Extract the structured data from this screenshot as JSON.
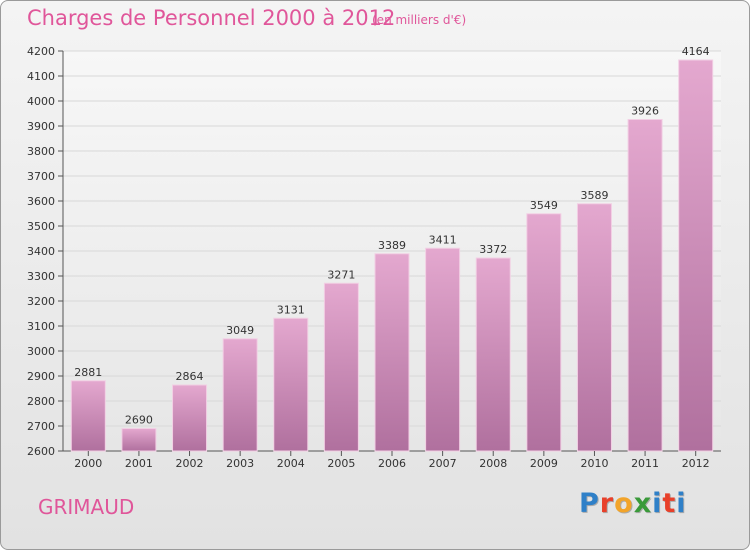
{
  "header": {
    "title": "Charges de Personnel 2000 à 2012",
    "subtitle": "(en milliers d'€)"
  },
  "footer": {
    "city": "GRIMAUD",
    "logo_letters": [
      "P",
      "r",
      "o",
      "x",
      "i",
      "t",
      "i"
    ]
  },
  "colors": {
    "title": "#e0569a",
    "bar_top": "#e4a8cf",
    "bar_bottom": "#b0709e",
    "bar_edge": "#f2cfe4",
    "grid": "#d8d8d8",
    "logo": [
      "#2f80c8",
      "#e8402a",
      "#f2a42a",
      "#3a9a3a",
      "#2f80c8",
      "#e8402a",
      "#2f80c8"
    ]
  },
  "chart_data": {
    "type": "bar",
    "title": "Charges de Personnel 2000 à 2012",
    "subtitle": "(en milliers d'€)",
    "categories": [
      "2000",
      "2001",
      "2002",
      "2003",
      "2004",
      "2005",
      "2006",
      "2007",
      "2008",
      "2009",
      "2010",
      "2011",
      "2012"
    ],
    "values": [
      2881,
      2690,
      2864,
      3049,
      3131,
      3271,
      3389,
      3411,
      3372,
      3549,
      3589,
      3926,
      4164
    ],
    "ylim": [
      2600,
      4200
    ],
    "yticks": [
      2600,
      2700,
      2800,
      2900,
      3000,
      3100,
      3200,
      3300,
      3400,
      3500,
      3600,
      3700,
      3800,
      3900,
      4000,
      4100,
      4200
    ],
    "grid": true,
    "xlabel": "",
    "ylabel": ""
  }
}
